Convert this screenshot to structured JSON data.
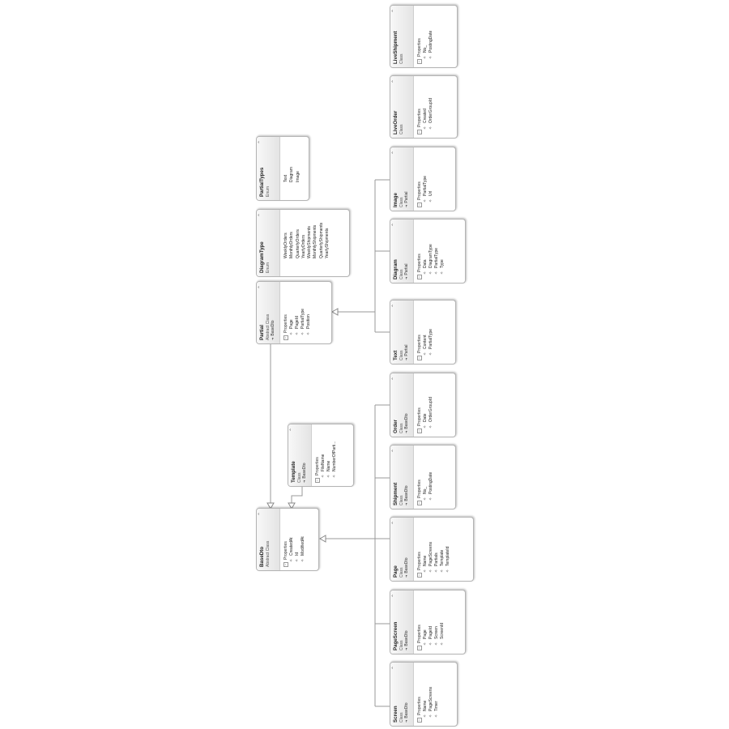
{
  "diagram": {
    "entities": [
      {
        "id": "liveshipment",
        "name": "LiveShipment",
        "kind": "Class",
        "base": "",
        "section": "Properties",
        "members": [
          "No_",
          "PostingDate"
        ]
      },
      {
        "id": "liveorder",
        "name": "LiveOrder",
        "kind": "Class",
        "base": "",
        "section": "Properties",
        "members": [
          "Created",
          "OrderGroupId"
        ]
      },
      {
        "id": "partialtypes",
        "name": "PartialTypes",
        "kind": "Enum",
        "base": "",
        "section": "",
        "members": [
          "Text",
          "Diagram",
          "Image"
        ]
      },
      {
        "id": "diagramtype",
        "name": "DiagramType",
        "kind": "Enum",
        "base": "",
        "section": "",
        "members": [
          "WeeklyOrders",
          "MonthlyOrders",
          "QuarterlyOrders",
          "YearlyOrders",
          "WeeklyShipments",
          "MonthlyShipments",
          "QuarterlyShipments",
          "YearlyShipments"
        ]
      },
      {
        "id": "image",
        "name": "Image",
        "kind": "Class",
        "base": "Partial",
        "section": "Properties",
        "members": [
          "PartialType",
          "Url"
        ]
      },
      {
        "id": "diagram",
        "name": "Diagram",
        "kind": "Class",
        "base": "Partial",
        "section": "Properties",
        "members": [
          "Data",
          "DiagramType",
          "PartialType",
          "Type"
        ]
      },
      {
        "id": "partial",
        "name": "Partial",
        "kind": "Abstract Class",
        "base": "BaseDto",
        "section": "Properties",
        "members": [
          "Page",
          "PageId",
          "PartialType",
          "Position"
        ]
      },
      {
        "id": "text",
        "name": "Text",
        "kind": "Class",
        "base": "Partial",
        "section": "Properties",
        "members": [
          "Content",
          "PartialType"
        ]
      },
      {
        "id": "order",
        "name": "Order",
        "kind": "Class",
        "base": "BaseDto",
        "section": "Properties",
        "members": [
          "Date",
          "OrderGroupId"
        ]
      },
      {
        "id": "template",
        "name": "Template",
        "kind": "Class",
        "base": "BaseDto",
        "section": "Properties",
        "members": [
          "FileName",
          "Name",
          "NumberOfParti..."
        ]
      },
      {
        "id": "shipment",
        "name": "Shipment",
        "kind": "Class",
        "base": "BaseDto",
        "section": "Properties",
        "members": [
          "No_",
          "PostingDate"
        ]
      },
      {
        "id": "basedto",
        "name": "BaseDto",
        "kind": "Abstract Class",
        "base": "",
        "section": "Properties",
        "members": [
          "CreatedAt",
          "Id",
          "ModifiedAt"
        ]
      },
      {
        "id": "page",
        "name": "Page",
        "kind": "Class",
        "base": "BaseDto",
        "section": "Properties",
        "members": [
          "Name",
          "PageScreens",
          "Partials",
          "Template",
          "TemplateId"
        ]
      },
      {
        "id": "pagescreen",
        "name": "PageScreen",
        "kind": "Class",
        "base": "BaseDto",
        "section": "Properties",
        "members": [
          "Page",
          "PageId",
          "Screen",
          "ScreenId"
        ]
      },
      {
        "id": "screen",
        "name": "Screen",
        "kind": "Class",
        "base": "BaseDto",
        "section": "Properties",
        "members": [
          "Name",
          "PageScreens",
          "Timer"
        ]
      }
    ],
    "icons": {
      "collapse": "⌃",
      "base_arrow": "➔",
      "section_toggle": "−",
      "property": "🔑"
    }
  }
}
